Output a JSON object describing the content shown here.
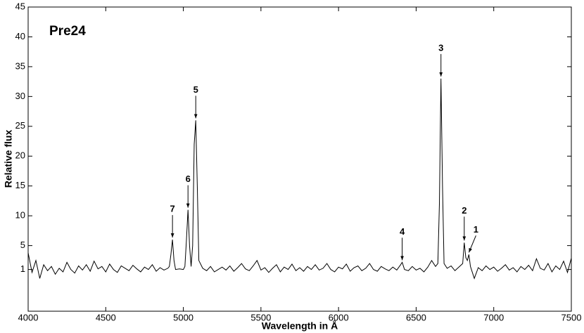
{
  "chart_data": {
    "type": "line",
    "title": "Pre24",
    "x_label": "Wavelength in Å",
    "y_label": "Relative flux",
    "xlim": [
      4000,
      7500
    ],
    "ylim": [
      -6,
      45
    ],
    "xticks": [
      4000,
      4500,
      5000,
      5500,
      6000,
      6500,
      7000,
      7500
    ],
    "yticks": [
      1,
      5,
      10,
      15,
      20,
      25,
      30,
      35,
      40,
      45
    ],
    "color": "#000000",
    "x": [
      4000,
      4025,
      4050,
      4075,
      4100,
      4125,
      4150,
      4175,
      4200,
      4225,
      4250,
      4275,
      4300,
      4325,
      4350,
      4375,
      4400,
      4425,
      4450,
      4475,
      4500,
      4525,
      4550,
      4575,
      4600,
      4625,
      4650,
      4675,
      4700,
      4725,
      4750,
      4775,
      4800,
      4825,
      4850,
      4875,
      4900,
      4910,
      4920,
      4930,
      4940,
      4950,
      4975,
      5000,
      5010,
      5020,
      5030,
      5040,
      5050,
      5060,
      5070,
      5080,
      5090,
      5100,
      5125,
      5150,
      5175,
      5200,
      5225,
      5250,
      5275,
      5300,
      5325,
      5350,
      5375,
      5400,
      5425,
      5450,
      5475,
      5500,
      5525,
      5550,
      5575,
      5600,
      5625,
      5650,
      5675,
      5700,
      5725,
      5750,
      5775,
      5800,
      5825,
      5850,
      5875,
      5900,
      5925,
      5950,
      5975,
      6000,
      6025,
      6050,
      6075,
      6100,
      6125,
      6150,
      6175,
      6200,
      6225,
      6250,
      6275,
      6300,
      6325,
      6350,
      6375,
      6400,
      6410,
      6425,
      6450,
      6475,
      6500,
      6525,
      6550,
      6575,
      6600,
      6625,
      6640,
      6650,
      6660,
      6670,
      6680,
      6700,
      6725,
      6750,
      6775,
      6800,
      6810,
      6820,
      6830,
      6840,
      6850,
      6875,
      6900,
      6925,
      6950,
      6975,
      7000,
      7025,
      7050,
      7075,
      7100,
      7125,
      7150,
      7175,
      7200,
      7225,
      7250,
      7275,
      7300,
      7325,
      7350,
      7375,
      7400,
      7425,
      7450,
      7475,
      7500
    ],
    "values": [
      3.8,
      0.5,
      2.5,
      -0.5,
      1.8,
      0.8,
      1.5,
      0.2,
      1.2,
      0.6,
      2.2,
      1.0,
      0.4,
      1.6,
      0.9,
      1.8,
      0.7,
      2.4,
      1.1,
      1.5,
      0.6,
      1.9,
      1.0,
      0.5,
      1.6,
      1.2,
      0.8,
      1.7,
      1.1,
      0.6,
      1.4,
      1.0,
      1.8,
      0.7,
      1.3,
      0.9,
      1.2,
      1.5,
      3.5,
      6.0,
      2.5,
      1.0,
      1.1,
      1.0,
      1.5,
      6.0,
      11.0,
      5.0,
      1.5,
      5.0,
      22.0,
      26.0,
      15.0,
      2.5,
      1.2,
      0.8,
      1.5,
      0.6,
      1.0,
      1.4,
      0.9,
      1.6,
      0.7,
      1.3,
      2.0,
      1.1,
      0.8,
      1.6,
      2.5,
      0.9,
      1.3,
      0.5,
      1.2,
      1.8,
      0.6,
      1.4,
      1.0,
      1.9,
      0.8,
      1.3,
      0.7,
      1.5,
      1.0,
      1.8,
      0.9,
      1.2,
      2.0,
      1.0,
      0.6,
      1.4,
      1.1,
      1.9,
      0.7,
      1.3,
      1.6,
      0.8,
      1.2,
      2.0,
      1.0,
      0.7,
      1.5,
      1.1,
      0.8,
      1.4,
      0.9,
      1.8,
      2.2,
      1.0,
      0.8,
      1.5,
      0.9,
      1.2,
      0.6,
      1.4,
      2.5,
      1.5,
      2.0,
      12.0,
      33.0,
      15.0,
      2.0,
      1.2,
      1.6,
      0.8,
      1.4,
      2.0,
      5.5,
      3.0,
      2.5,
      3.5,
      1.5,
      -0.5,
      1.3,
      0.8,
      1.6,
      1.0,
      1.4,
      0.7,
      1.2,
      1.8,
      0.9,
      1.3,
      0.6,
      1.5,
      1.0,
      1.7,
      0.8,
      2.8,
      1.2,
      0.9,
      2.0,
      0.6,
      1.6,
      1.0,
      2.4,
      0.5,
      2.9
    ],
    "annotations": [
      {
        "label": "1",
        "x": 6840,
        "y": 3.5
      },
      {
        "label": "2",
        "x": 6810,
        "y": 5.5
      },
      {
        "label": "3",
        "x": 6660,
        "y": 33
      },
      {
        "label": "4",
        "x": 6410,
        "y": 2.2
      },
      {
        "label": "5",
        "x": 5080,
        "y": 26
      },
      {
        "label": "6",
        "x": 5030,
        "y": 11
      },
      {
        "label": "7",
        "x": 4930,
        "y": 6
      }
    ]
  }
}
